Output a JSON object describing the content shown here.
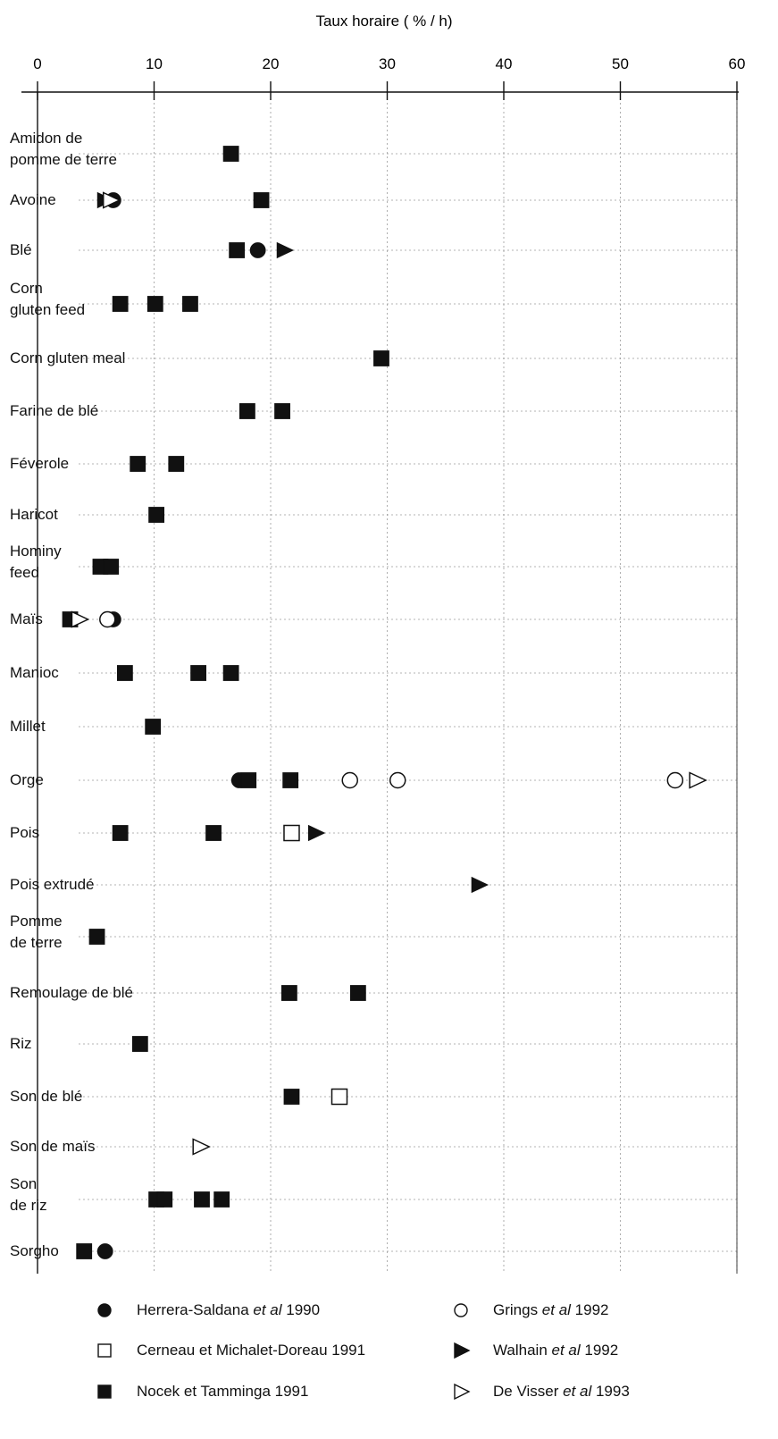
{
  "chart_data": {
    "type": "scatter",
    "title": "Taux horaire ( % / h)",
    "xlim": [
      0,
      60
    ],
    "x_ticks": [
      "0",
      "10",
      "20",
      "30",
      "40",
      "50",
      "60"
    ],
    "x_tick_values": [
      0,
      10,
      20,
      30,
      40,
      50,
      60
    ],
    "grid": true,
    "legend_position": "bottom",
    "categories": [
      [
        "Amidon de",
        "pomme de terre"
      ],
      [
        "Avoine"
      ],
      [
        "Blé"
      ],
      [
        "Corn",
        "gluten feed"
      ],
      [
        "Corn gluten meal"
      ],
      [
        "Farine de blé"
      ],
      [
        "Féverole"
      ],
      [
        "Haricot"
      ],
      [
        "Hominy",
        "feed"
      ],
      [
        "Maïs"
      ],
      [
        "Manioc"
      ],
      [
        "Millet"
      ],
      [
        "Orge"
      ],
      [
        "Pois"
      ],
      [
        "Pois extrudé"
      ],
      [
        "Pomme",
        "de terre"
      ],
      [
        "Remoulage de blé"
      ],
      [
        "Riz"
      ],
      [
        "Son de blé"
      ],
      [
        "Son de maïs"
      ],
      [
        "Son",
        "de riz"
      ],
      [
        "Sorgho"
      ]
    ],
    "series": [
      {
        "name_parts": [
          "Herrera-Saldana ",
          "et al",
          " 1990"
        ],
        "marker": "filled-circle",
        "points": [
          [
            6.5,
            1
          ],
          [
            18.9,
            2
          ],
          [
            6.5,
            9
          ],
          [
            17.3,
            12
          ],
          [
            5.8,
            21
          ]
        ]
      },
      {
        "name_parts": [
          "Cerneau et Michalet-Doreau 1991"
        ],
        "marker": "open-square",
        "points": [
          [
            21.8,
            13
          ],
          [
            25.9,
            18
          ]
        ]
      },
      {
        "name_parts": [
          "Nocek et Tamminga 1991"
        ],
        "marker": "filled-square",
        "points": [
          [
            16.6,
            0
          ],
          [
            19.2,
            1
          ],
          [
            17.1,
            2
          ],
          [
            7.1,
            3
          ],
          [
            10.1,
            3
          ],
          [
            13.1,
            3
          ],
          [
            29.5,
            4
          ],
          [
            18.0,
            5
          ],
          [
            21.0,
            5
          ],
          [
            8.6,
            6
          ],
          [
            11.9,
            6
          ],
          [
            10.2,
            7
          ],
          [
            5.4,
            8
          ],
          [
            6.3,
            8
          ],
          [
            2.8,
            9
          ],
          [
            7.5,
            10
          ],
          [
            13.8,
            10
          ],
          [
            16.6,
            10
          ],
          [
            9.9,
            11
          ],
          [
            18.1,
            12
          ],
          [
            21.7,
            12
          ],
          [
            7.1,
            13
          ],
          [
            15.1,
            13
          ],
          [
            5.1,
            15
          ],
          [
            21.6,
            16
          ],
          [
            27.5,
            16
          ],
          [
            8.8,
            17
          ],
          [
            21.8,
            18
          ],
          [
            10.2,
            20
          ],
          [
            10.9,
            20
          ],
          [
            14.1,
            20
          ],
          [
            15.8,
            20
          ],
          [
            4.0,
            21
          ]
        ]
      },
      {
        "name_parts": [
          "Grings ",
          "et al",
          " 1992"
        ],
        "marker": "open-circle",
        "points": [
          [
            6.0,
            9
          ],
          [
            26.8,
            12
          ],
          [
            30.9,
            12
          ],
          [
            54.7,
            12
          ]
        ]
      },
      {
        "name_parts": [
          "Walhain ",
          "et al",
          " 1992"
        ],
        "marker": "filled-triangle",
        "points": [
          [
            5.8,
            1
          ],
          [
            21.2,
            2
          ],
          [
            23.9,
            13
          ],
          [
            37.9,
            14
          ]
        ]
      },
      {
        "name_parts": [
          "De Visser ",
          "et al",
          " 1993"
        ],
        "marker": "open-triangle",
        "points": [
          [
            6.3,
            1
          ],
          [
            3.6,
            9
          ],
          [
            56.6,
            12
          ],
          [
            14.0,
            19
          ]
        ]
      }
    ]
  }
}
